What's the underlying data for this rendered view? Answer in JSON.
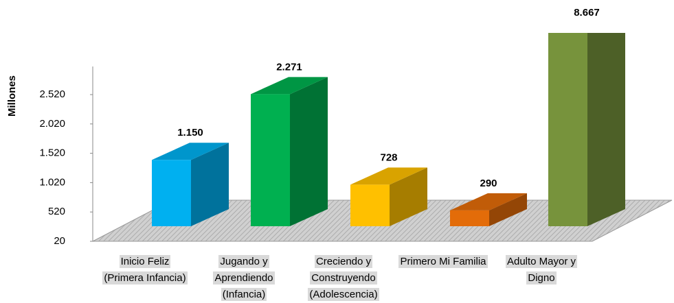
{
  "chart_data": {
    "type": "bar3d",
    "y_label": "Millones",
    "categories": [
      "Inicio Feliz (Primera Infancia)",
      "Jugando y Aprendiendo (Infancia)",
      "Creciendo y Construyendo (Adolescencia)",
      "Primero Mi Familia",
      "Adulto Mayor y Digno"
    ],
    "values": [
      1150,
      2271,
      728,
      290,
      8667
    ],
    "value_labels": [
      "1.150",
      "2.271",
      "728",
      "290",
      "8.667"
    ],
    "colors": [
      "#00b0f0",
      "#00b050",
      "#ffc000",
      "#e36c09",
      "#77933c"
    ],
    "ylim": [
      20,
      3020
    ],
    "yticks": [
      20,
      520,
      {
        "value": 1020,
        "label": "1.020"
      },
      {
        "value": 1520,
        "label": "1.520"
      },
      {
        "value": 2020,
        "label": "2.020"
      },
      {
        "value": 2520,
        "label": "2.520"
      }
    ]
  }
}
